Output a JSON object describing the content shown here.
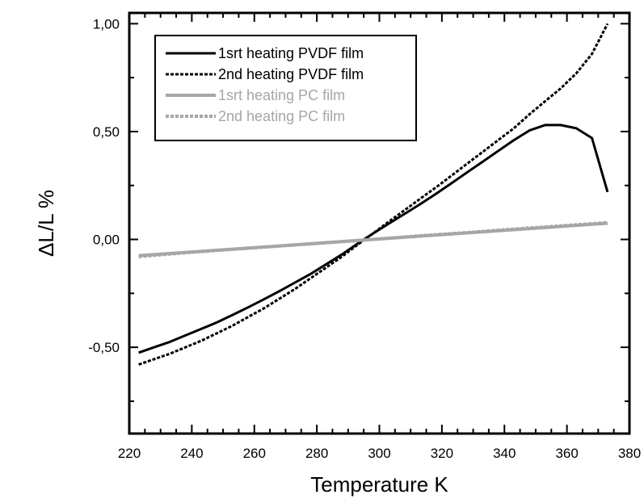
{
  "chart_data": {
    "type": "line",
    "title": "",
    "xlabel": "Temperature K",
    "ylabel": "ΔL/L %",
    "xlim": [
      220,
      380
    ],
    "ylim": [
      -0.9,
      1.05
    ],
    "grid": false,
    "legend_position": "top-left",
    "x_ticks": [
      {
        "value": 220,
        "label": "220"
      },
      {
        "value": 240,
        "label": "240"
      },
      {
        "value": 260,
        "label": "260"
      },
      {
        "value": 280,
        "label": "280"
      },
      {
        "value": 300,
        "label": "300"
      },
      {
        "value": 320,
        "label": "320"
      },
      {
        "value": 340,
        "label": "340"
      },
      {
        "value": 360,
        "label": "360"
      },
      {
        "value": 380,
        "label": "380"
      }
    ],
    "y_ticks": [
      {
        "value": -0.5,
        "label": "-0,50"
      },
      {
        "value": 0.0,
        "label": "0,00"
      },
      {
        "value": 0.5,
        "label": "0,50"
      },
      {
        "value": 1.0,
        "label": "1,00"
      }
    ],
    "series": [
      {
        "name": "1srt heating PVDF film",
        "color": "#000000",
        "dash": "solid",
        "x": [
          223,
          228,
          233,
          238,
          243,
          248,
          253,
          258,
          263,
          268,
          273,
          278,
          283,
          288,
          293,
          298,
          303,
          308,
          313,
          318,
          323,
          328,
          333,
          338,
          343,
          348,
          353,
          358,
          363,
          368,
          373
        ],
        "y": [
          -0.525,
          -0.5,
          -0.475,
          -0.445,
          -0.415,
          -0.385,
          -0.35,
          -0.315,
          -0.278,
          -0.24,
          -0.2,
          -0.16,
          -0.115,
          -0.07,
          -0.02,
          0.028,
          0.073,
          0.118,
          0.163,
          0.21,
          0.26,
          0.31,
          0.36,
          0.41,
          0.46,
          0.505,
          0.53,
          0.53,
          0.515,
          0.47,
          0.22
        ]
      },
      {
        "name": "2nd heating PVDF film",
        "color": "#000000",
        "dash": "dotted",
        "x": [
          223,
          228,
          233,
          238,
          243,
          248,
          253,
          258,
          263,
          268,
          273,
          278,
          283,
          288,
          293,
          298,
          303,
          308,
          313,
          318,
          323,
          328,
          333,
          338,
          343,
          348,
          353,
          358,
          363,
          368,
          373
        ],
        "y": [
          -0.58,
          -0.555,
          -0.53,
          -0.5,
          -0.47,
          -0.435,
          -0.4,
          -0.36,
          -0.32,
          -0.275,
          -0.23,
          -0.18,
          -0.13,
          -0.08,
          -0.025,
          0.028,
          0.082,
          0.135,
          0.188,
          0.24,
          0.295,
          0.35,
          0.405,
          0.46,
          0.515,
          0.58,
          0.64,
          0.7,
          0.77,
          0.86,
          1.0
        ]
      },
      {
        "name": "1srt heating PC film",
        "color": "#a6a6a6",
        "dash": "solid",
        "x": [
          223,
          238,
          253,
          268,
          283,
          298,
          313,
          328,
          343,
          358,
          368,
          373
        ],
        "y": [
          -0.075,
          -0.06,
          -0.045,
          -0.03,
          -0.015,
          0.0,
          0.015,
          0.03,
          0.045,
          0.06,
          0.07,
          0.075
        ]
      },
      {
        "name": "2nd heating PC film",
        "color": "#a6a6a6",
        "dash": "dotted",
        "x": [
          223,
          238,
          253,
          268,
          283,
          298,
          313,
          328,
          343,
          358,
          368,
          373
        ],
        "y": [
          -0.08,
          -0.062,
          -0.046,
          -0.031,
          -0.016,
          0.0,
          0.017,
          0.032,
          0.048,
          0.063,
          0.073,
          0.078
        ]
      }
    ]
  }
}
